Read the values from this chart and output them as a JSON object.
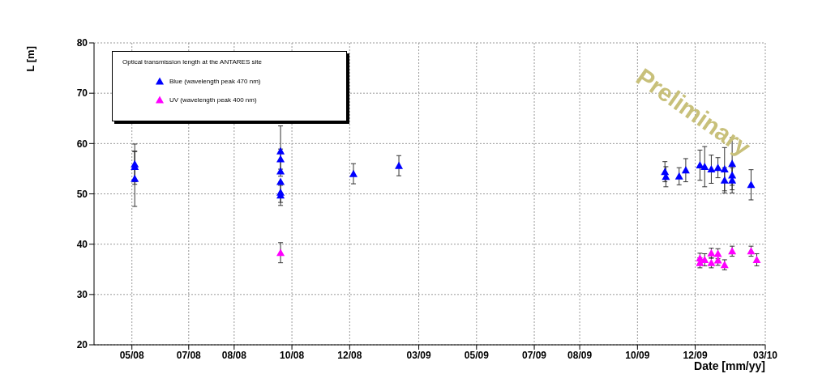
{
  "chart_data": {
    "type": "scatter",
    "xlabel": "Date [mm/yy]",
    "ylabel": "L [m]",
    "legend_title": "Optical transmission length at the ANTARES site",
    "legend": "top left",
    "grid": true,
    "marker": "triangle",
    "annotations": [
      "Preliminary"
    ],
    "xlim": [
      "2008-04-05",
      "2010-03-15"
    ],
    "xticks": [
      {
        "value": "2008-05-15",
        "label": "05/08"
      },
      {
        "value": "2008-07-14",
        "label": "07/08"
      },
      {
        "value": "2008-08-31",
        "label": "08/08"
      },
      {
        "value": "2008-10-31",
        "label": "10/08"
      },
      {
        "value": "2008-12-31",
        "label": "12/08"
      },
      {
        "value": "2009-03-14",
        "label": "03/09"
      },
      {
        "value": "2009-05-14",
        "label": "05/09"
      },
      {
        "value": "2009-07-14",
        "label": "07/09"
      },
      {
        "value": "2009-08-31",
        "label": "08/09"
      },
      {
        "value": "2009-10-31",
        "label": "10/09"
      },
      {
        "value": "2009-12-31",
        "label": "12/09"
      },
      {
        "value": "2010-03-15",
        "label": "03/10"
      }
    ],
    "ylim": [
      20,
      80
    ],
    "yticks": [
      20,
      30,
      40,
      50,
      60,
      70,
      80
    ],
    "series": [
      {
        "name": "Blue (wavelength peak 470 nm)",
        "color": "#0000ff",
        "x": [
          "2008-05-18",
          "2008-05-18",
          "2008-05-18",
          "2008-10-19",
          "2008-10-19",
          "2008-10-19",
          "2008-10-19",
          "2008-10-19",
          "2008-10-19",
          "2009-01-04",
          "2009-02-21",
          "2009-11-29",
          "2009-11-30",
          "2009-12-14",
          "2009-12-21",
          "2010-01-05",
          "2010-01-10",
          "2010-01-17",
          "2010-01-24",
          "2010-01-31",
          "2010-01-31",
          "2010-02-08",
          "2010-02-08",
          "2010-02-08",
          "2010-02-28"
        ],
        "values": [
          55.9,
          55.4,
          53,
          58.5,
          56.9,
          54.5,
          52.4,
          50.3,
          49.7,
          54,
          55.6,
          54.4,
          53.4,
          53.5,
          54.7,
          55.7,
          55.4,
          54.9,
          55.2,
          54.9,
          52.7,
          56,
          53.7,
          52.7,
          51.8
        ],
        "errors": [
          4,
          3,
          5.5,
          5,
          2,
          null,
          null,
          2,
          2,
          2,
          2,
          2,
          2,
          1.7,
          2.3,
          3,
          4,
          2.8,
          2,
          4.3,
          2.5,
          5.2,
          2,
          2.5,
          3
        ]
      },
      {
        "name": "UV (wavelength peak 400 nm)",
        "color": "#ff00ff",
        "x": [
          "2008-10-19",
          "2010-01-05",
          "2010-01-05",
          "2010-01-10",
          "2010-01-17",
          "2010-01-17",
          "2010-01-24",
          "2010-01-24",
          "2010-01-31",
          "2010-02-08",
          "2010-02-28",
          "2010-03-06"
        ],
        "values": [
          38.3,
          37.2,
          36.3,
          36.9,
          38.2,
          36.3,
          38.1,
          36.8,
          35.9,
          38.6,
          38.6,
          36.9
        ],
        "errors": [
          2,
          1,
          1,
          1.2,
          1,
          1,
          1,
          1,
          1,
          1,
          1,
          1.2
        ]
      }
    ]
  }
}
